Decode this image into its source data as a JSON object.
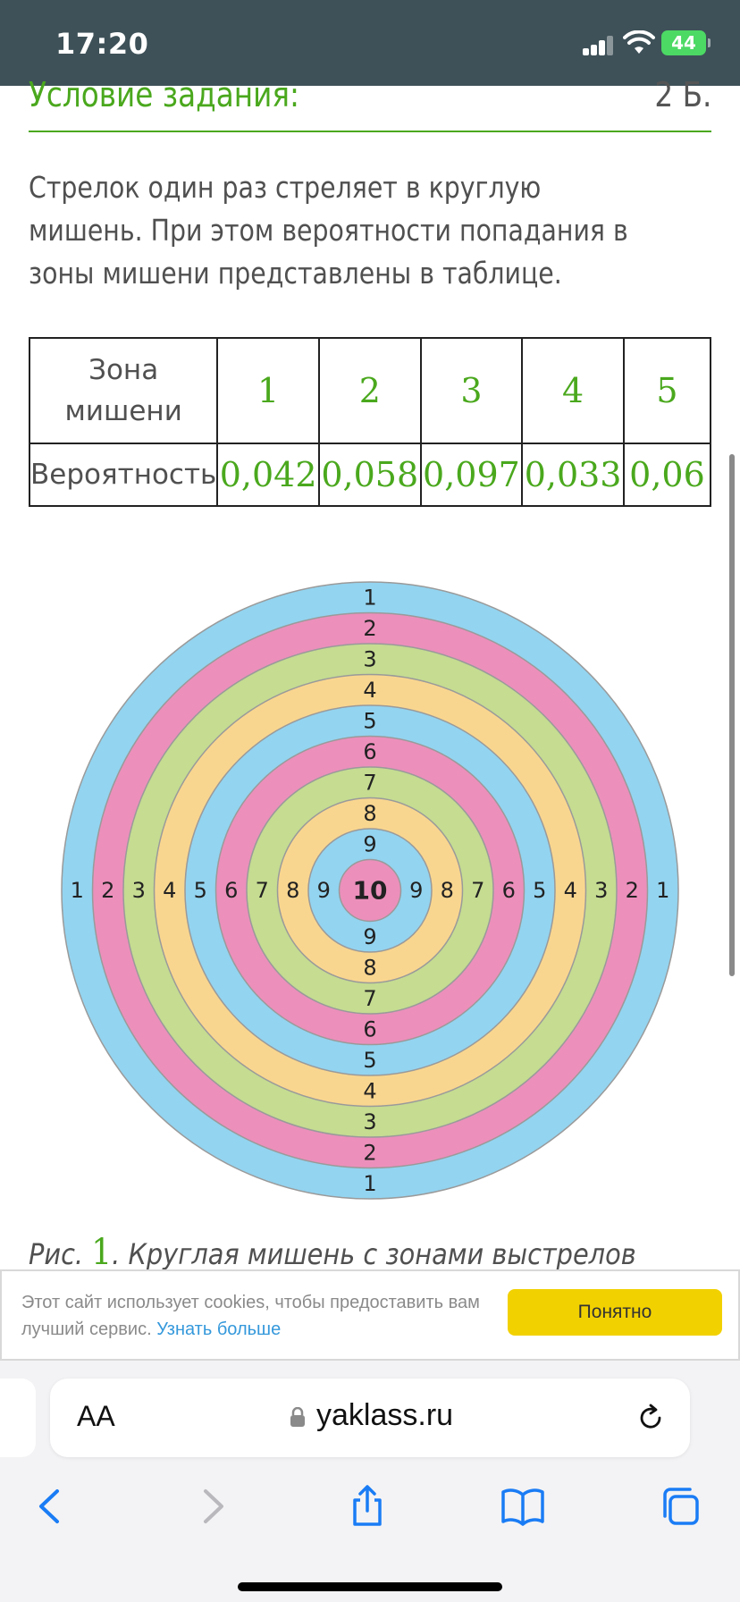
{
  "status_bar": {
    "time": "17:20",
    "battery": "44"
  },
  "task": {
    "title": "Условие задания:",
    "points": "2 Б.",
    "text": "Стрелок один раз стреляет в круглую мишень. При этом вероятности попадания в зоны мишени представлены в таблице."
  },
  "table": {
    "header_label": "Зона мишени",
    "row_label": "Вероятность",
    "zones": [
      "1",
      "2",
      "3",
      "4",
      "5"
    ],
    "probabilities": [
      "0,042",
      "0,058",
      "0,097",
      "0,033",
      "0,06"
    ]
  },
  "target": {
    "rings": [
      "1",
      "2",
      "3",
      "4",
      "5",
      "6",
      "7",
      "8",
      "9"
    ],
    "center": "10",
    "colors": [
      "#93d4f0",
      "#ec8fbb",
      "#c5dc91",
      "#f9d68f"
    ]
  },
  "caption": {
    "prefix": "Рис.",
    "number": "1",
    "text": ". Круглая мишень с зонами выстрелов"
  },
  "cookie": {
    "text": "Этот сайт использует cookies, чтобы предоставить вам лучший сервис.",
    "link": "Узнать больше",
    "button": "Понятно"
  },
  "browser": {
    "aa_label": "AA",
    "url": "yaklass.ru"
  }
}
